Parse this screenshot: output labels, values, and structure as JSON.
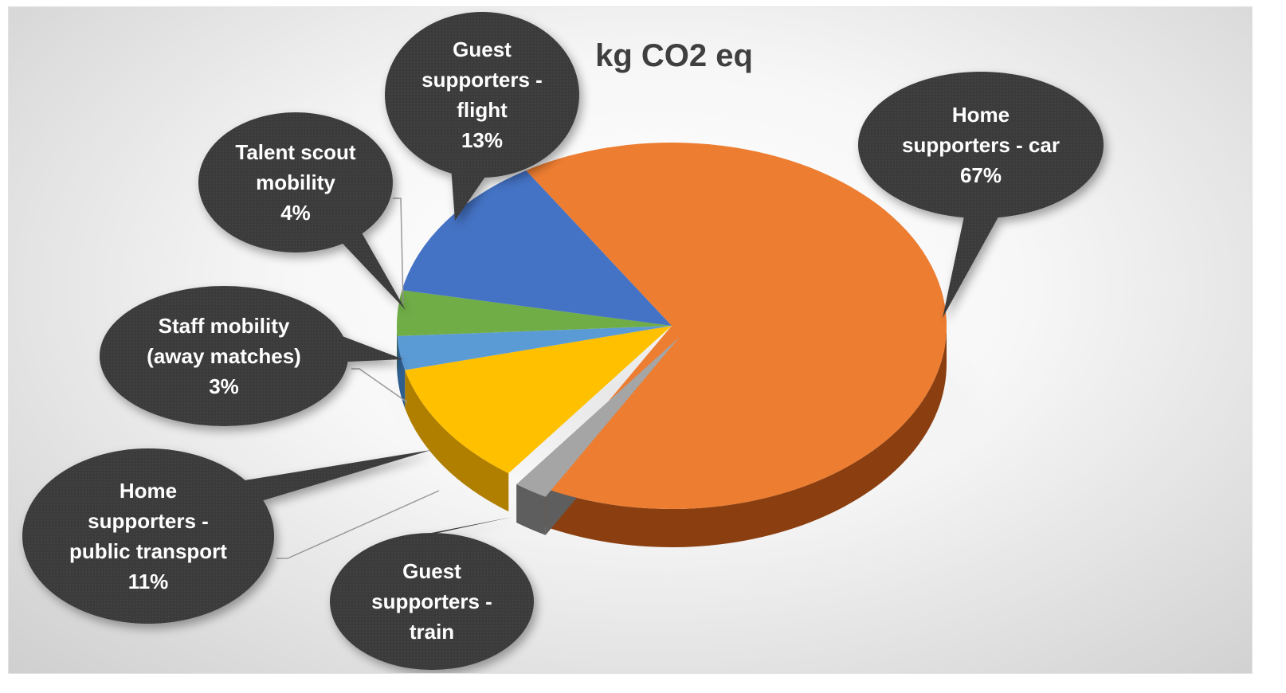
{
  "chart_data": {
    "type": "pie",
    "title": "kg CO2 eq",
    "style": "3d-exploded-pie-with-callouts",
    "slices": [
      {
        "name": "Home supporters - car",
        "percent_label": "67%",
        "value": 67,
        "color": "#ED7D31",
        "side_color": "#8B3F10"
      },
      {
        "name": "Guest supporters - train",
        "percent_label": "",
        "value": 2,
        "color": "#A5A5A5",
        "side_color": "#5E5E5E"
      },
      {
        "name": "Home supporters - public transport",
        "percent_label": "11%",
        "value": 11,
        "color": "#FFC000",
        "side_color": "#B07F00"
      },
      {
        "name": "Staff mobility (away matches)",
        "percent_label": "3%",
        "value": 3,
        "color": "#5B9BD5",
        "side_color": "#2E5E8E"
      },
      {
        "name": "Talent scout mobility",
        "percent_label": "4%",
        "value": 4,
        "color": "#70AD47",
        "side_color": "#3E6A22"
      },
      {
        "name": "Guest supporters - flight",
        "percent_label": "13%",
        "value": 13,
        "color": "#4472C4",
        "side_color": "#23407A"
      }
    ],
    "callouts": [
      {
        "lines": [
          "Home",
          "supporters - car",
          "67%"
        ]
      },
      {
        "lines": [
          "Guest",
          "supporters -",
          "train"
        ]
      },
      {
        "lines": [
          "Home",
          "supporters -",
          "public transport",
          "11%"
        ]
      },
      {
        "lines": [
          "Staff mobility",
          "(away matches)",
          "3%"
        ]
      },
      {
        "lines": [
          "Talent scout",
          "mobility",
          "4%"
        ]
      },
      {
        "lines": [
          "Guest",
          "supporters -",
          "flight",
          "13%"
        ]
      }
    ],
    "legend": "none",
    "callout_color": "#3B3B3B"
  }
}
